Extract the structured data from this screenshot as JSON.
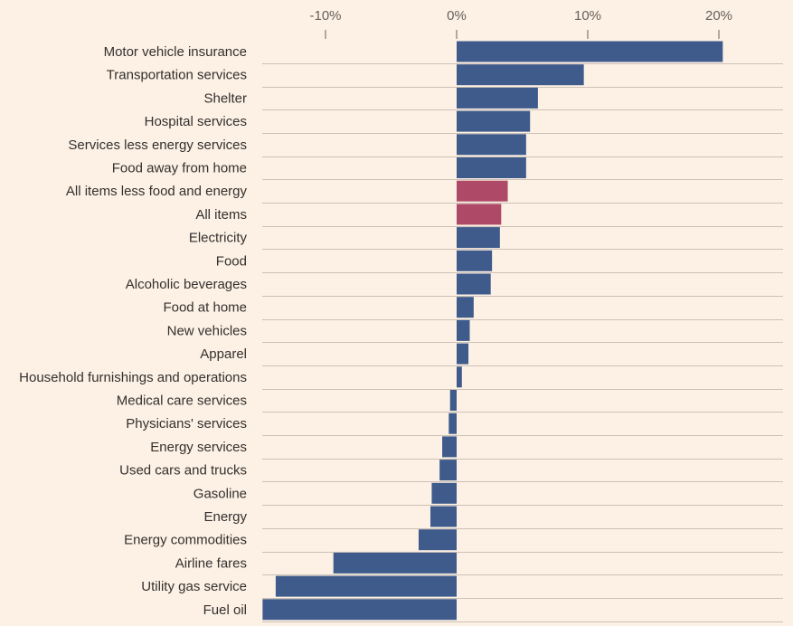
{
  "chart_data": {
    "type": "bar",
    "orientation": "horizontal",
    "title": "",
    "xlabel": "",
    "ylabel": "",
    "xlim": [
      -15,
      25
    ],
    "x_ticks": [
      -10,
      0,
      10,
      20
    ],
    "x_tick_labels": [
      "-10%",
      "0%",
      "10%",
      "20%"
    ],
    "x_axis_position": "top",
    "grid": true,
    "legend": "none",
    "colors": {
      "default": "#3f5b8c",
      "highlight": "#ae4a67",
      "background": "#fdf1e5"
    },
    "categories": [
      "Motor vehicle insurance",
      "Transportation services",
      "Shelter",
      "Hospital services",
      "Services less energy services",
      "Food away from home",
      "All items less food and energy",
      "All items",
      "Electricity",
      "Food",
      "Alcoholic beverages",
      "Food at home",
      "New vehicles",
      "Apparel",
      "Household furnishings and operations",
      "Medical care services",
      "Physicians' services",
      "Energy services",
      "Used cars and trucks",
      "Gasoline",
      "Energy",
      "Energy commodities",
      "Airline fares",
      "Utility gas service",
      "Fuel oil"
    ],
    "values": [
      20.3,
      9.7,
      6.2,
      5.6,
      5.3,
      5.3,
      3.9,
      3.4,
      3.3,
      2.7,
      2.6,
      1.3,
      1.0,
      0.9,
      0.4,
      -0.5,
      -0.6,
      -1.1,
      -1.3,
      -1.9,
      -2.0,
      -2.9,
      -9.4,
      -13.8,
      -14.8
    ],
    "highlighted": [
      "All items less food and energy",
      "All items"
    ]
  }
}
